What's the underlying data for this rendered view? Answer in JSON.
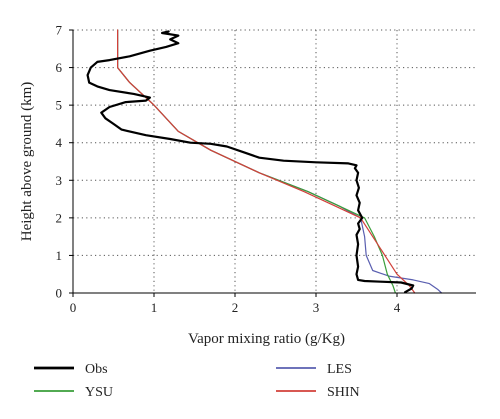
{
  "chart_data": {
    "type": "line",
    "xlabel": "Vapor mixing ratio (g/Kg)",
    "ylabel": "Height above ground (km)",
    "xlim": [
      0,
      5
    ],
    "ylim": [
      0,
      7
    ],
    "xticks": [
      0,
      1,
      2,
      3,
      4
    ],
    "yticks": [
      0,
      1,
      2,
      3,
      4,
      5,
      6,
      7
    ],
    "grid": "dotted",
    "legend": "bottom",
    "series": [
      {
        "name": "Obs",
        "color": "#000000",
        "width": 2.2,
        "points": [
          [
            4.1,
            0.02
          ],
          [
            4.18,
            0.12
          ],
          [
            4.2,
            0.2
          ],
          [
            4.05,
            0.28
          ],
          [
            3.8,
            0.3
          ],
          [
            3.6,
            0.32
          ],
          [
            3.52,
            0.35
          ],
          [
            3.5,
            0.5
          ],
          [
            3.52,
            0.7
          ],
          [
            3.5,
            1.0
          ],
          [
            3.52,
            1.3
          ],
          [
            3.5,
            1.55
          ],
          [
            3.54,
            1.7
          ],
          [
            3.52,
            1.85
          ],
          [
            3.57,
            2.0
          ],
          [
            3.52,
            2.2
          ],
          [
            3.54,
            2.4
          ],
          [
            3.5,
            2.6
          ],
          [
            3.53,
            2.8
          ],
          [
            3.5,
            3.0
          ],
          [
            3.52,
            3.2
          ],
          [
            3.48,
            3.32
          ],
          [
            3.5,
            3.4
          ],
          [
            3.4,
            3.45
          ],
          [
            3.0,
            3.48
          ],
          [
            2.6,
            3.52
          ],
          [
            2.3,
            3.6
          ],
          [
            2.1,
            3.75
          ],
          [
            1.9,
            3.9
          ],
          [
            1.7,
            3.97
          ],
          [
            1.45,
            4.0
          ],
          [
            1.2,
            4.1
          ],
          [
            0.9,
            4.2
          ],
          [
            0.6,
            4.35
          ],
          [
            0.5,
            4.5
          ],
          [
            0.4,
            4.65
          ],
          [
            0.35,
            4.8
          ],
          [
            0.45,
            4.95
          ],
          [
            0.65,
            5.08
          ],
          [
            0.9,
            5.12
          ],
          [
            0.95,
            5.2
          ],
          [
            0.75,
            5.3
          ],
          [
            0.45,
            5.4
          ],
          [
            0.3,
            5.5
          ],
          [
            0.2,
            5.6
          ],
          [
            0.18,
            5.8
          ],
          [
            0.22,
            6.0
          ],
          [
            0.3,
            6.15
          ],
          [
            0.45,
            6.2
          ],
          [
            0.7,
            6.3
          ],
          [
            0.95,
            6.45
          ],
          [
            1.15,
            6.55
          ],
          [
            1.3,
            6.65
          ],
          [
            1.2,
            6.75
          ],
          [
            1.3,
            6.85
          ],
          [
            1.1,
            6.92
          ],
          [
            1.18,
            6.96
          ]
        ]
      },
      {
        "name": "LES",
        "color": "#5a5fb0",
        "width": 1.2,
        "points": [
          [
            4.55,
            0.0
          ],
          [
            4.5,
            0.1
          ],
          [
            4.4,
            0.25
          ],
          [
            4.2,
            0.35
          ],
          [
            3.9,
            0.45
          ],
          [
            3.7,
            0.6
          ],
          [
            3.62,
            1.0
          ],
          [
            3.6,
            1.5
          ],
          [
            3.55,
            2.0
          ],
          [
            3.3,
            2.3
          ],
          [
            2.9,
            2.7
          ],
          [
            2.3,
            3.2
          ],
          [
            1.7,
            3.8
          ],
          [
            1.3,
            4.3
          ],
          [
            1.0,
            5.0
          ],
          [
            0.7,
            5.6
          ],
          [
            0.55,
            6.0
          ],
          [
            0.55,
            7.0
          ]
        ]
      },
      {
        "name": "YSU",
        "color": "#3a9e3a",
        "width": 1.2,
        "points": [
          [
            3.98,
            0.0
          ],
          [
            3.95,
            0.2
          ],
          [
            3.88,
            0.5
          ],
          [
            3.82,
            1.0
          ],
          [
            3.72,
            1.5
          ],
          [
            3.6,
            2.0
          ],
          [
            3.3,
            2.3
          ],
          [
            2.9,
            2.7
          ],
          [
            2.3,
            3.2
          ],
          [
            1.7,
            3.8
          ],
          [
            1.3,
            4.3
          ],
          [
            1.0,
            5.0
          ],
          [
            0.7,
            5.6
          ],
          [
            0.55,
            6.0
          ],
          [
            0.55,
            7.0
          ]
        ]
      },
      {
        "name": "SHIN",
        "color": "#d2403a",
        "width": 1.2,
        "points": [
          [
            4.22,
            0.0
          ],
          [
            4.15,
            0.2
          ],
          [
            4.0,
            0.5
          ],
          [
            3.85,
            1.0
          ],
          [
            3.7,
            1.5
          ],
          [
            3.55,
            2.0
          ],
          [
            3.25,
            2.3
          ],
          [
            2.85,
            2.7
          ],
          [
            2.3,
            3.2
          ],
          [
            1.7,
            3.8
          ],
          [
            1.3,
            4.3
          ],
          [
            1.0,
            5.0
          ],
          [
            0.7,
            5.6
          ],
          [
            0.55,
            6.0
          ],
          [
            0.55,
            7.0
          ]
        ]
      }
    ]
  }
}
